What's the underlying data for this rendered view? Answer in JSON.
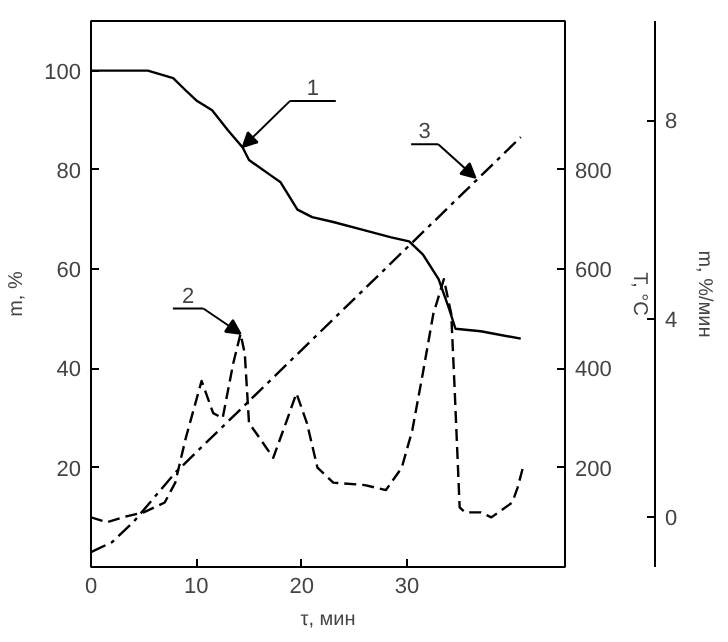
{
  "chart_data": {
    "type": "line",
    "xlabel": "τ, мин",
    "ylabel": "m, %",
    "y2label": "T, °C",
    "y3label": "m, %/мин",
    "xlim": [
      0,
      45
    ],
    "xticks": [
      0,
      10,
      20,
      30
    ],
    "ylim": [
      0,
      110
    ],
    "yticks": [
      20,
      40,
      60,
      80,
      100
    ],
    "y2lim": [
      0,
      1100
    ],
    "y2ticks": [
      200,
      400,
      600,
      800
    ],
    "y3lim": [
      -1,
      10
    ],
    "y3ticks": [
      0,
      4,
      8
    ],
    "grid": false,
    "marker": "none",
    "series": [
      {
        "color": "#000000",
        "line_style": "solid",
        "x": [
          0,
          5.4,
          7.8,
          9,
          10,
          11.5,
          13,
          14.4,
          15,
          17,
          18,
          19.6,
          21,
          23,
          26,
          28.5,
          30.2,
          31.5,
          33,
          34,
          34.6,
          37,
          40.8
        ],
        "values": [
          100,
          100,
          98.5,
          96,
          94,
          92,
          88,
          84.5,
          82,
          79,
          77.5,
          72,
          70.5,
          69.5,
          67.8,
          66.4,
          65.6,
          63,
          58,
          52,
          48,
          47.5,
          46
        ]
      },
      {
        "color": "#000000",
        "line_style": "dashed",
        "axis": "y3",
        "x": [
          0,
          1.5,
          3,
          5,
          7,
          8,
          9,
          10.5,
          11.6,
          12.5,
          13.5,
          14.2,
          14.6,
          15,
          16,
          17.3,
          18.5,
          19.5,
          20.5,
          21.5,
          23,
          26,
          28,
          29.5,
          30.5,
          31.5,
          32.5,
          33.5,
          34.2,
          34.5,
          35,
          35.5,
          37,
          38,
          40,
          40.5,
          41
        ],
        "values": [
          0,
          -0.1,
          0,
          0.1,
          0.3,
          0.7,
          1.6,
          2.75,
          2.1,
          2.0,
          3.1,
          3.7,
          3.3,
          1.9,
          1.6,
          1.2,
          1.9,
          2.5,
          1.9,
          1.0,
          0.7,
          0.65,
          0.55,
          1.0,
          1.75,
          2.9,
          4.1,
          4.8,
          4.1,
          2.7,
          0.2,
          0.1,
          0.1,
          0,
          0.3,
          0.6,
          1.0
        ]
      },
      {
        "color": "#000000",
        "line_style": "dashdot",
        "axis": "y2",
        "x": [
          0,
          2,
          4,
          6,
          8,
          40.8
        ],
        "values": [
          30,
          50,
          90,
          140,
          190,
          866
        ]
      }
    ],
    "annotations": [
      {
        "text": "1",
        "x": 14.4,
        "y": 84.6
      },
      {
        "text": "2",
        "x": 14.2,
        "y": 47
      },
      {
        "text": "3",
        "x": 36.5,
        "y": 78.4
      }
    ]
  }
}
